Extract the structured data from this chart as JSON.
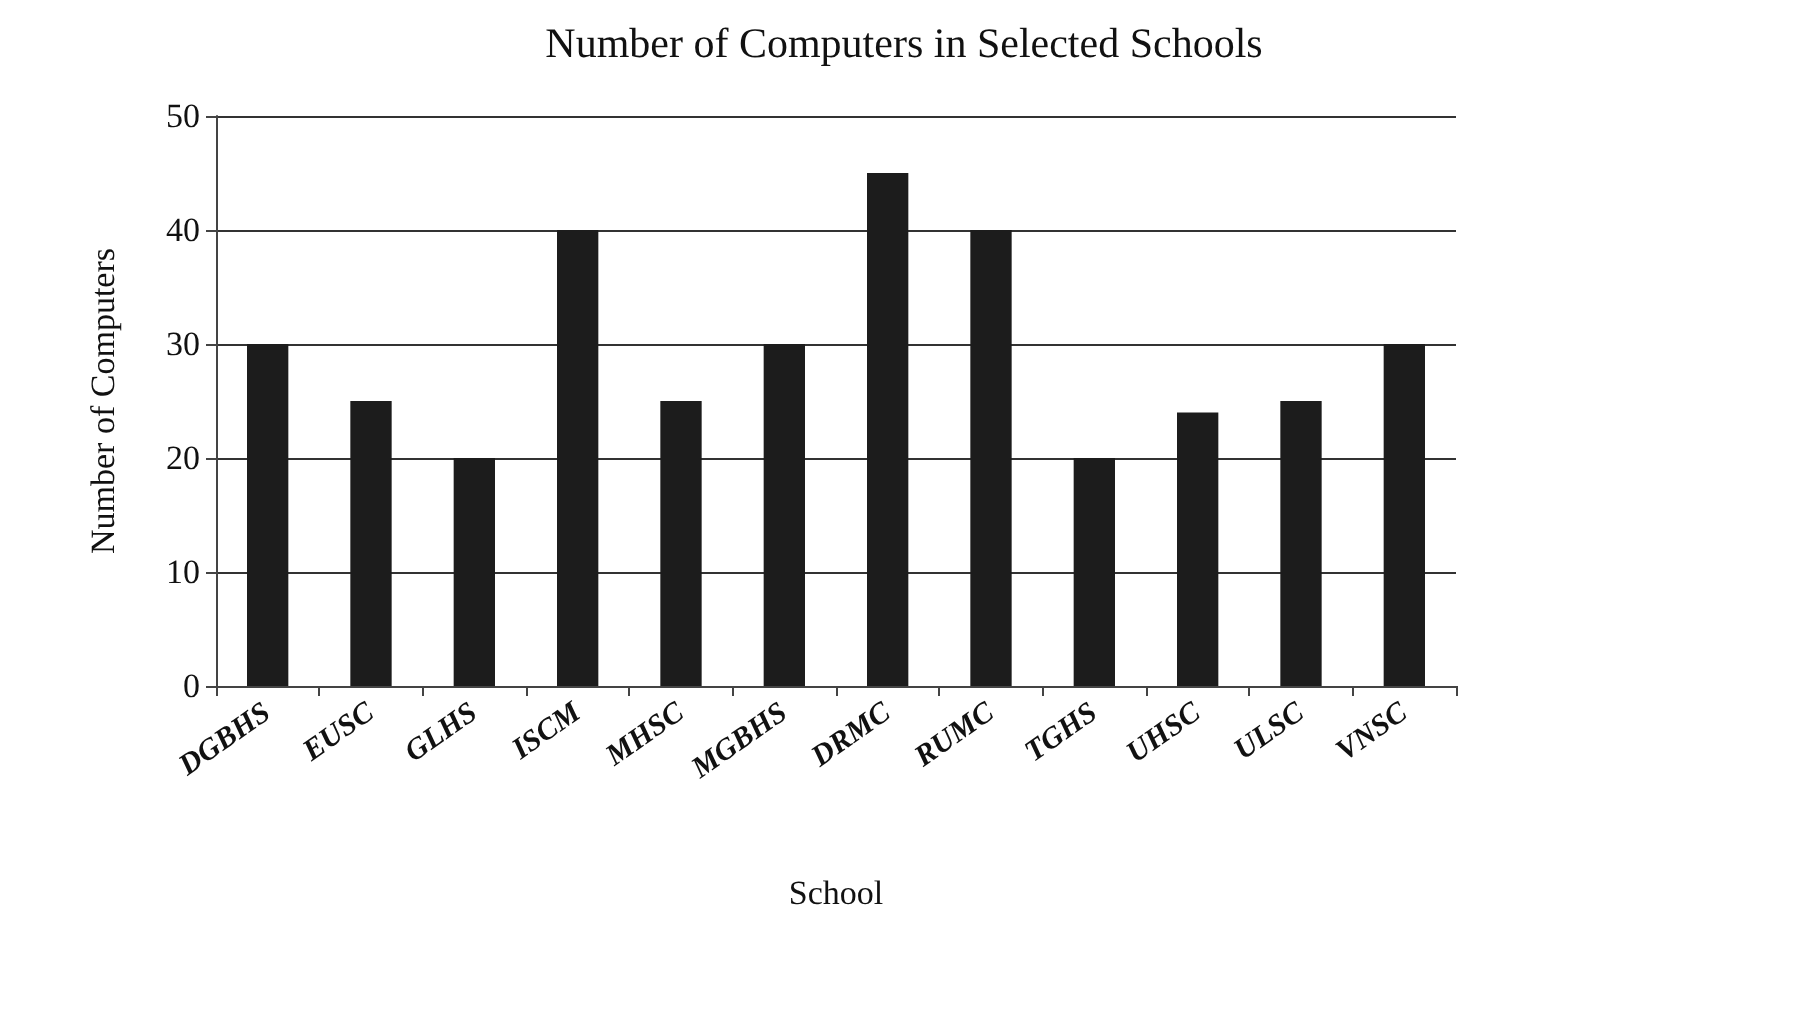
{
  "chart_data": {
    "type": "bar",
    "title": "Number of Computers in Selected Schools",
    "xlabel": "School",
    "ylabel": "Number of Computers",
    "categories": [
      "DGBHS",
      "EUSC",
      "GLHS",
      "ISCM",
      "MHSC",
      "MGBHS",
      "DRMC",
      "RUMC",
      "TGHS",
      "UHSC",
      "ULSC",
      "VNSC"
    ],
    "values": [
      30,
      25,
      20,
      40,
      25,
      30,
      45,
      40,
      20,
      24,
      25,
      30
    ],
    "color": "#1c1c1c",
    "ylim": [
      0,
      50
    ],
    "yticks": [
      0,
      10,
      20,
      30,
      40,
      50
    ],
    "grid": "y"
  }
}
